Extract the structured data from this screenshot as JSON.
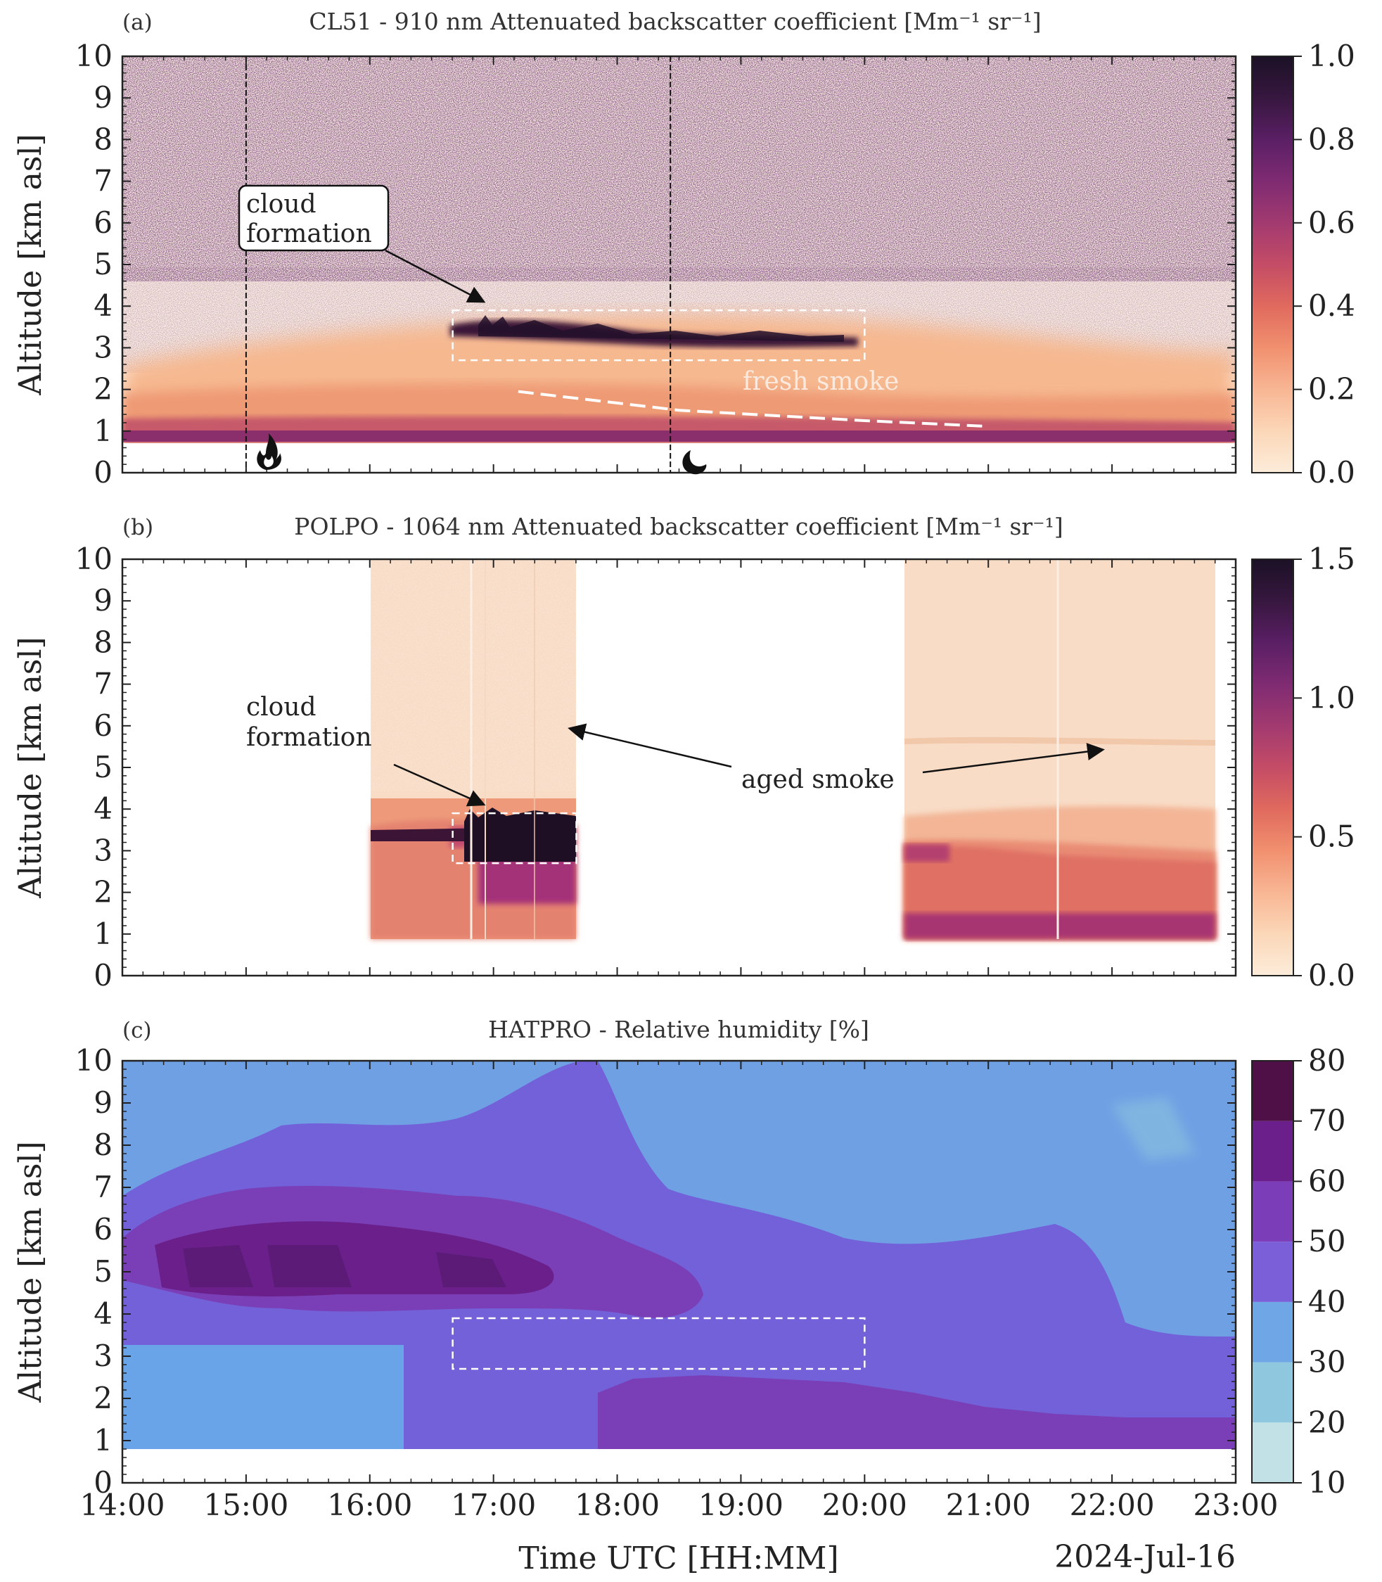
{
  "figure": {
    "date_label": "2024-Jul-16",
    "xlabel": "Time UTC [HH:MM]"
  },
  "colors": {
    "magma_r": [
      "#fcecda",
      "#fbd7b8",
      "#f8b694",
      "#f1906f",
      "#e06a5e",
      "#c44c66",
      "#a23a70",
      "#7f2b72",
      "#5a1f64",
      "#37173f",
      "#1b1126"
    ],
    "rh_levels": [
      "#c2e1e6",
      "#8fc8de",
      "#6fa7e6",
      "#7a5fd8",
      "#7c3db8",
      "#6b1f8a",
      "#4f1048"
    ]
  },
  "chart_data": [
    {
      "type": "heatmap",
      "panel": "(a)",
      "title": "CL51 - 910 nm Attenuated backscatter coefficient [Mm⁻¹ sr⁻¹]",
      "ylabel": "Altitude [km asl]",
      "x_range": [
        14,
        23
      ],
      "ylim": [
        0,
        10
      ],
      "yticks": [
        "0",
        "1",
        "2",
        "3",
        "4",
        "5",
        "6",
        "7",
        "8",
        "9",
        "10"
      ],
      "colorbar": {
        "range": [
          0,
          1
        ],
        "ticks": [
          "0.0",
          "0.2",
          "0.4",
          "0.6",
          "0.8",
          "1.0"
        ]
      },
      "vlines": [
        15.0,
        18.43
      ],
      "annotations": [
        {
          "text": "cloud",
          "text2": "formation",
          "target": [
            16.95,
            4.2
          ]
        },
        {
          "text": "fresh smoke",
          "at": [
            19.7,
            2.2
          ]
        }
      ],
      "box": {
        "x": [
          16.67,
          20.0
        ],
        "y": [
          2.7,
          3.9
        ]
      },
      "smoke_line": [
        [
          17.2,
          1.95
        ],
        [
          18.5,
          1.5
        ],
        [
          20.0,
          1.25
        ],
        [
          20.95,
          1.12
        ]
      ],
      "symbols": [
        {
          "name": "fire",
          "x": 15.15
        },
        {
          "name": "moon",
          "x": 18.57
        }
      ]
    },
    {
      "type": "heatmap",
      "panel": "(b)",
      "title": "POLPO - 1064 nm Attenuated backscatter coefficient [Mm⁻¹ sr⁻¹]",
      "ylabel": "Altitude [km asl]",
      "x_range": [
        14,
        23
      ],
      "ylim": [
        0,
        10
      ],
      "yticks": [
        "0",
        "1",
        "2",
        "3",
        "4",
        "5",
        "6",
        "7",
        "8",
        "9",
        "10"
      ],
      "colorbar": {
        "range": [
          0,
          1.5
        ],
        "ticks": [
          "0.0",
          "0.5",
          "1.0",
          "1.5"
        ]
      },
      "data_windows": [
        [
          16.0,
          17.67
        ],
        [
          20.3,
          22.8
        ]
      ],
      "annotations": [
        {
          "text": "cloud",
          "text2": "formation",
          "target": [
            16.95,
            4.2
          ]
        },
        {
          "text": "aged smoke",
          "at": [
            19.7,
            4.7
          ],
          "targets": [
            [
              17.6,
              6.1
            ],
            [
              21.9,
              5.5
            ]
          ]
        }
      ],
      "box": {
        "x": [
          16.67,
          17.67
        ],
        "y": [
          2.7,
          3.9
        ]
      }
    },
    {
      "type": "heatmap",
      "panel": "(c)",
      "title": "HATPRO - Relative humidity [%]",
      "ylabel": "Altitude [km asl]",
      "x_range": [
        14,
        23
      ],
      "ylim": [
        0,
        10
      ],
      "yticks": [
        "0",
        "1",
        "2",
        "3",
        "4",
        "5",
        "6",
        "7",
        "8",
        "9",
        "10"
      ],
      "xticks": [
        "14:00",
        "15:00",
        "16:00",
        "17:00",
        "18:00",
        "19:00",
        "20:00",
        "21:00",
        "22:00",
        "23:00"
      ],
      "colorbar": {
        "levels": [
          10,
          20,
          30,
          40,
          50,
          60,
          70,
          80
        ],
        "ticks": [
          "10",
          "20",
          "30",
          "40",
          "50",
          "60",
          "70",
          "80"
        ]
      },
      "box": {
        "x": [
          16.67,
          20.0
        ],
        "y": [
          2.7,
          3.9
        ]
      }
    }
  ]
}
